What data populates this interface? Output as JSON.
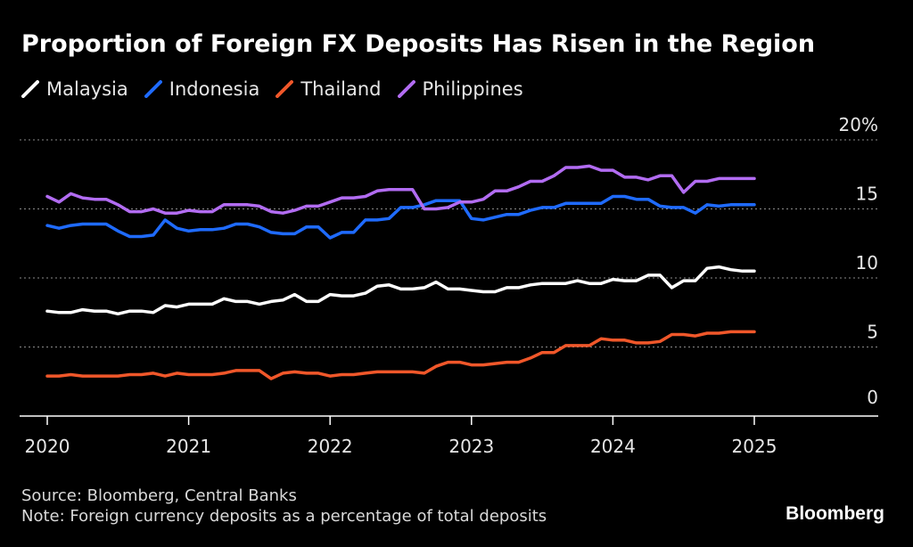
{
  "title": "Proportion of Foreign FX Deposits Has Risen in the Region",
  "legend": [
    {
      "label": "Malaysia",
      "color": "#ffffff"
    },
    {
      "label": "Indonesia",
      "color": "#1f6bff"
    },
    {
      "label": "Thailand",
      "color": "#f0572a"
    },
    {
      "label": "Philippines",
      "color": "#b26cf2"
    }
  ],
  "footer": {
    "source": "Source: Bloomberg, Central Banks",
    "note": "Note: Foreign currency deposits as a percentage of total deposits"
  },
  "brand": "Bloomberg",
  "chart_data": {
    "type": "line",
    "ylim": [
      0,
      20
    ],
    "ytick_labels": [
      "20%",
      "15",
      "10",
      "5",
      "0"
    ],
    "ytick_values": [
      20,
      15,
      10,
      5,
      0
    ],
    "xtick_labels": [
      "2020",
      "2021",
      "2022",
      "2023",
      "2024",
      "2025"
    ],
    "xtick_years": [
      2020,
      2021,
      2022,
      2023,
      2024,
      2025
    ],
    "x_start": 2020.0,
    "x_step": 0.0833333,
    "grid": "horizontal dotted",
    "series": [
      {
        "name": "Malaysia",
        "color": "#ffffff",
        "values": [
          7.6,
          7.5,
          7.5,
          7.7,
          7.6,
          7.6,
          7.4,
          7.6,
          7.6,
          7.5,
          8.0,
          7.9,
          8.1,
          8.1,
          8.1,
          8.5,
          8.3,
          8.3,
          8.1,
          8.3,
          8.4,
          8.8,
          8.3,
          8.3,
          8.8,
          8.7,
          8.7,
          8.9,
          9.4,
          9.5,
          9.2,
          9.2,
          9.3,
          9.7,
          9.2,
          9.2,
          9.1,
          9.0,
          9.0,
          9.3,
          9.3,
          9.5,
          9.6,
          9.6,
          9.6,
          9.8,
          9.6,
          9.6,
          9.9,
          9.8,
          9.8,
          10.2,
          10.2,
          9.3,
          9.8,
          9.8,
          10.7,
          10.8,
          10.6,
          10.5,
          10.5
        ]
      },
      {
        "name": "Indonesia",
        "color": "#1f6bff",
        "values": [
          13.8,
          13.6,
          13.8,
          13.9,
          13.9,
          13.9,
          13.4,
          13.0,
          13.0,
          13.1,
          14.2,
          13.6,
          13.4,
          13.5,
          13.5,
          13.6,
          13.9,
          13.9,
          13.7,
          13.3,
          13.2,
          13.2,
          13.7,
          13.7,
          12.9,
          13.3,
          13.3,
          14.2,
          14.2,
          14.3,
          15.1,
          15.1,
          15.3,
          15.6,
          15.6,
          15.6,
          14.3,
          14.2,
          14.4,
          14.6,
          14.6,
          14.9,
          15.1,
          15.1,
          15.4,
          15.4,
          15.4,
          15.4,
          15.9,
          15.9,
          15.7,
          15.7,
          15.2,
          15.1,
          15.1,
          14.7,
          15.3,
          15.2,
          15.3,
          15.3,
          15.3
        ]
      },
      {
        "name": "Thailand",
        "color": "#f0572a",
        "values": [
          2.9,
          2.9,
          3.0,
          2.9,
          2.9,
          2.9,
          2.9,
          3.0,
          3.0,
          3.1,
          2.9,
          3.1,
          3.0,
          3.0,
          3.0,
          3.1,
          3.3,
          3.3,
          3.3,
          2.7,
          3.1,
          3.2,
          3.1,
          3.1,
          2.9,
          3.0,
          3.0,
          3.1,
          3.2,
          3.2,
          3.2,
          3.2,
          3.1,
          3.6,
          3.9,
          3.9,
          3.7,
          3.7,
          3.8,
          3.9,
          3.9,
          4.2,
          4.6,
          4.6,
          5.1,
          5.1,
          5.1,
          5.6,
          5.5,
          5.5,
          5.3,
          5.3,
          5.4,
          5.9,
          5.9,
          5.8,
          6.0,
          6.0,
          6.1,
          6.1,
          6.1
        ]
      },
      {
        "name": "Philippines",
        "color": "#b26cf2",
        "values": [
          15.9,
          15.5,
          16.1,
          15.8,
          15.7,
          15.7,
          15.3,
          14.8,
          14.8,
          15.0,
          14.7,
          14.7,
          14.9,
          14.8,
          14.8,
          15.3,
          15.3,
          15.3,
          15.2,
          14.8,
          14.7,
          14.9,
          15.2,
          15.2,
          15.5,
          15.8,
          15.8,
          15.9,
          16.3,
          16.4,
          16.4,
          16.4,
          15.0,
          15.0,
          15.1,
          15.5,
          15.5,
          15.7,
          16.3,
          16.3,
          16.6,
          17.0,
          17.0,
          17.4,
          18.0,
          18.0,
          18.1,
          17.8,
          17.8,
          17.3,
          17.3,
          17.1,
          17.4,
          17.4,
          16.2,
          17.0,
          17.0,
          17.2,
          17.2,
          17.2,
          17.2
        ]
      }
    ]
  }
}
